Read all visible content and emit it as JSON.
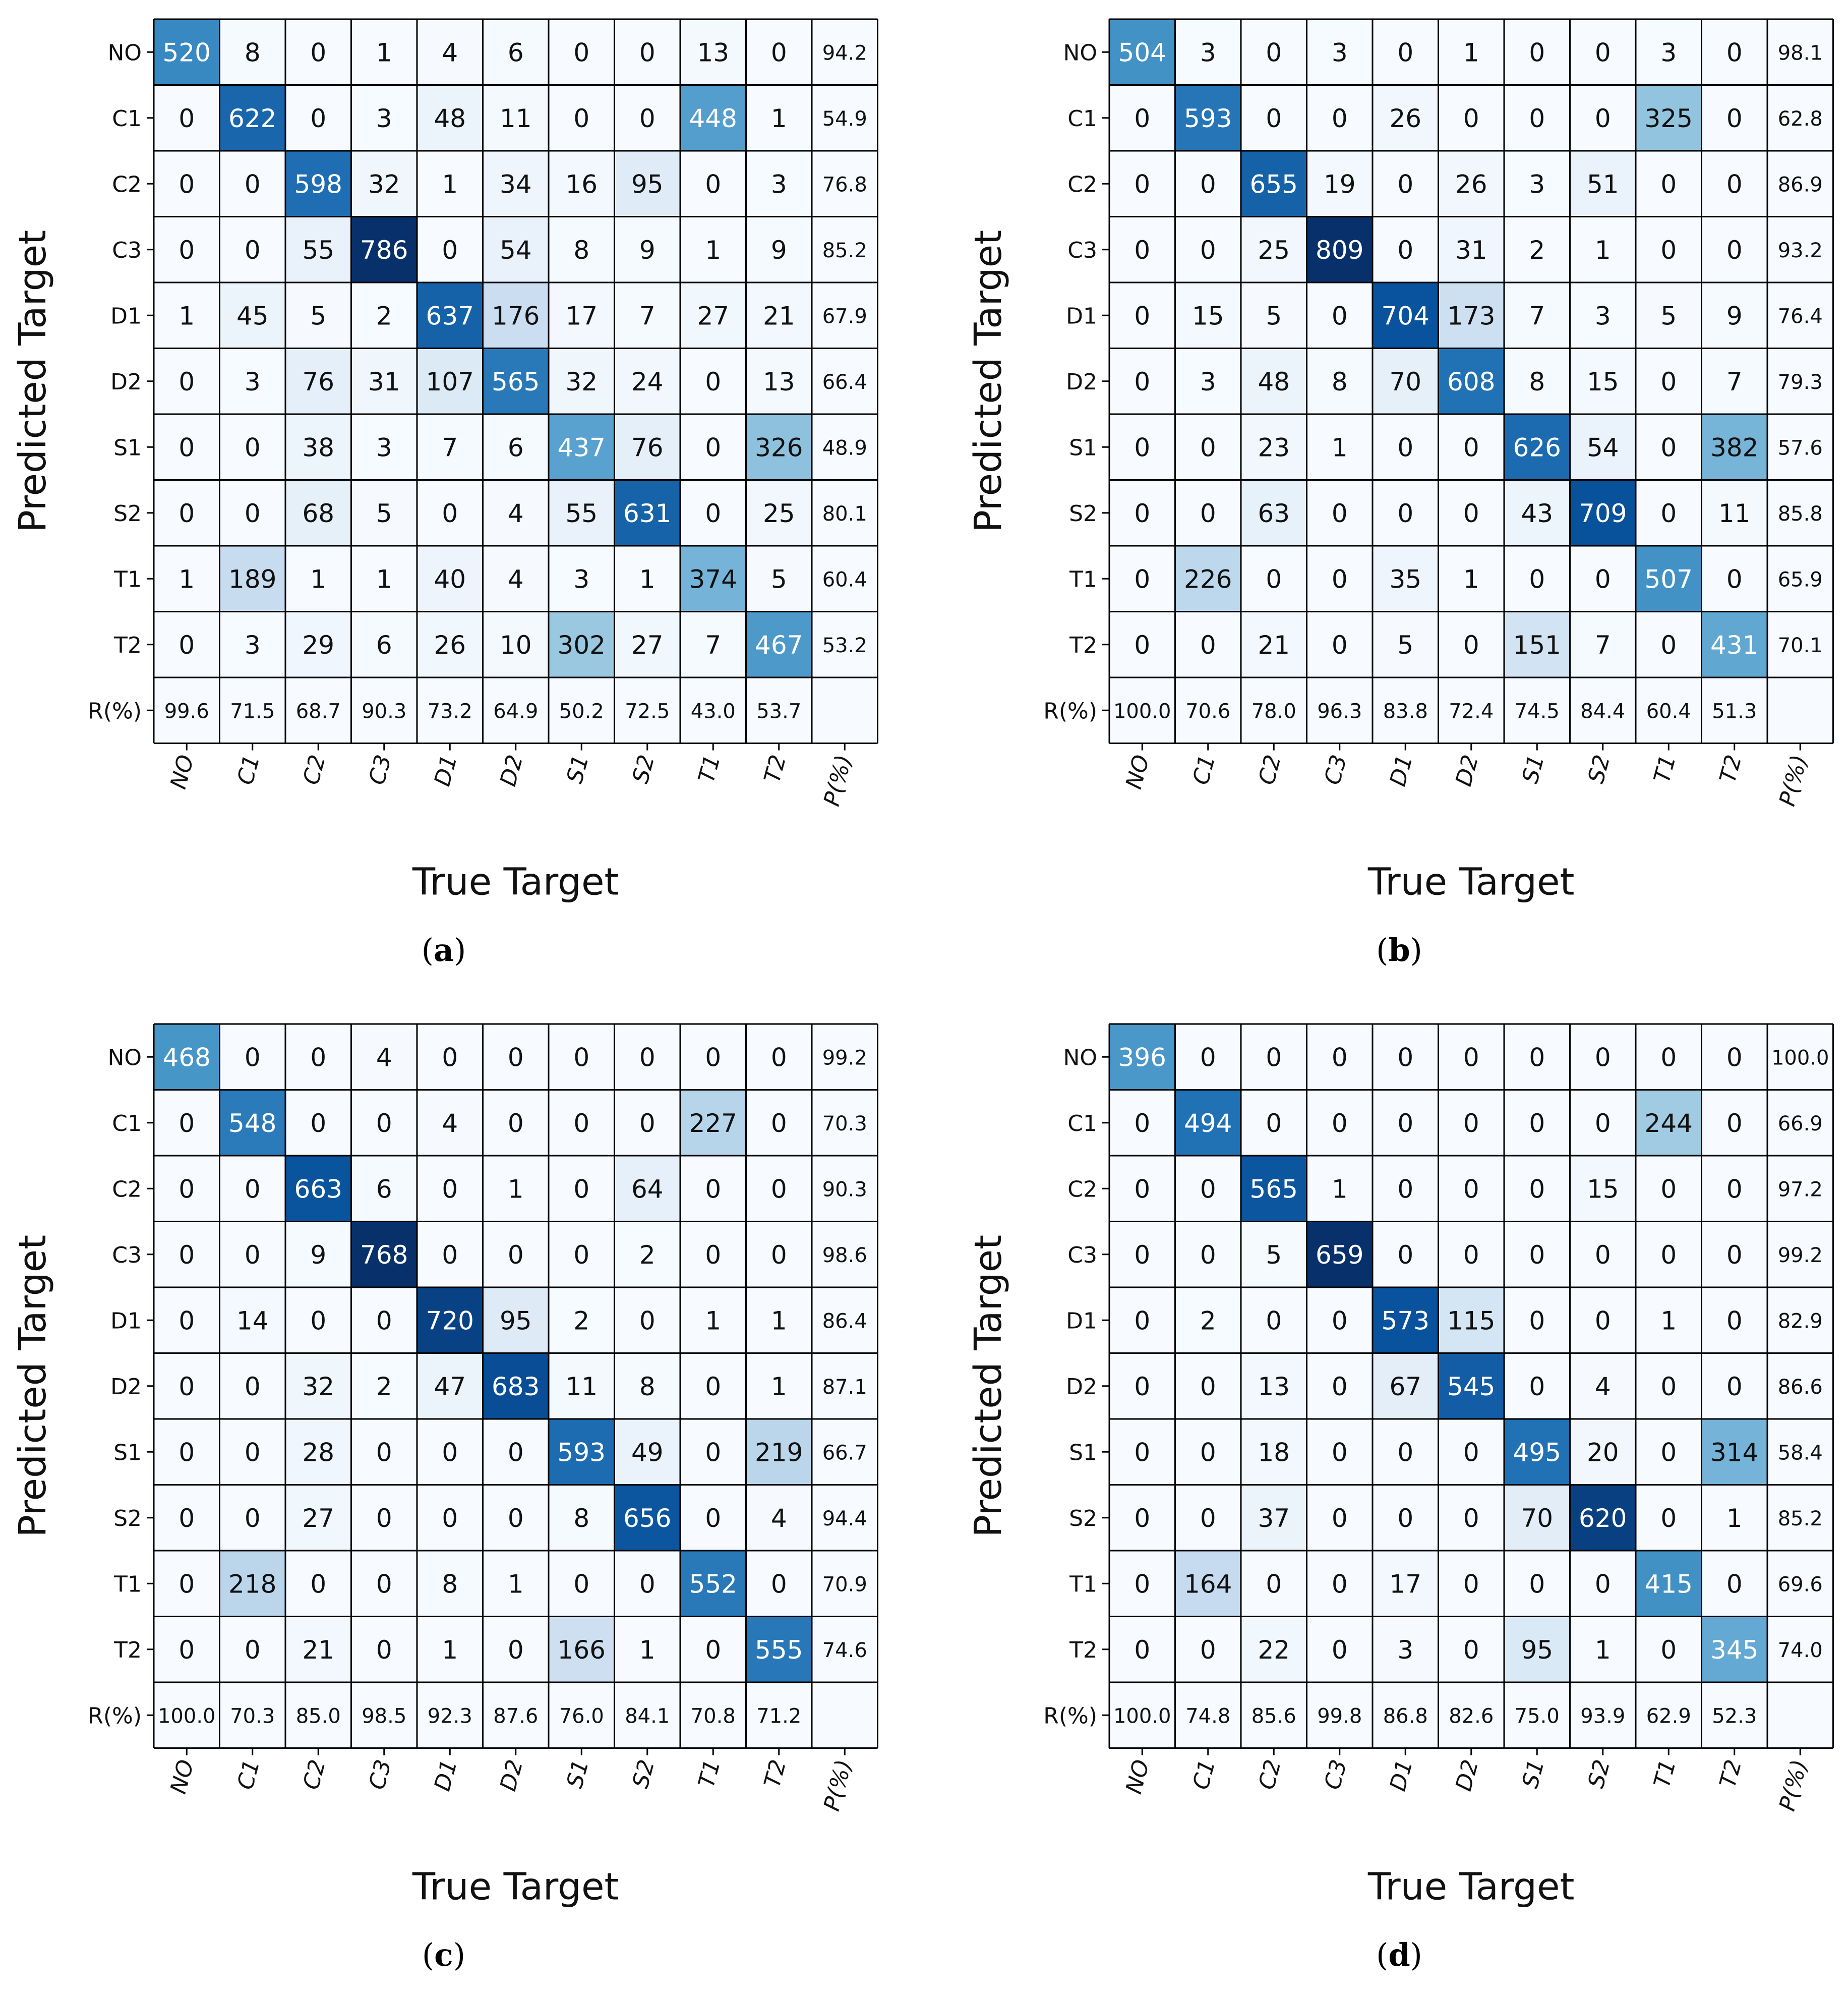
{
  "chart_data": [
    {
      "type": "heatmap",
      "panel": "a",
      "caption_letter": "a",
      "ylabel": "Predicted Target",
      "xlabel": "True Target",
      "row_labels": [
        "NO",
        "C1",
        "C2",
        "C3",
        "D1",
        "D2",
        "S1",
        "S2",
        "T1",
        "T2",
        "R(%)"
      ],
      "col_labels": [
        "NO",
        "C1",
        "C2",
        "C3",
        "D1",
        "D2",
        "S1",
        "S2",
        "T1",
        "T2",
        "P(%)"
      ],
      "matrix": [
        [
          520,
          8,
          0,
          1,
          4,
          6,
          0,
          0,
          13,
          0
        ],
        [
          0,
          622,
          0,
          3,
          48,
          11,
          0,
          0,
          448,
          1
        ],
        [
          0,
          0,
          598,
          32,
          1,
          34,
          16,
          95,
          0,
          3
        ],
        [
          0,
          0,
          55,
          786,
          0,
          54,
          8,
          9,
          1,
          9
        ],
        [
          1,
          45,
          5,
          2,
          637,
          176,
          17,
          7,
          27,
          21
        ],
        [
          0,
          3,
          76,
          31,
          107,
          565,
          32,
          24,
          0,
          13
        ],
        [
          0,
          0,
          38,
          3,
          7,
          6,
          437,
          76,
          0,
          326
        ],
        [
          0,
          0,
          68,
          5,
          0,
          4,
          55,
          631,
          0,
          25
        ],
        [
          1,
          189,
          1,
          1,
          40,
          4,
          3,
          1,
          374,
          5
        ],
        [
          0,
          3,
          29,
          6,
          26,
          10,
          302,
          27,
          7,
          467
        ]
      ],
      "precision": [
        "94.2",
        "54.9",
        "76.8",
        "85.2",
        "67.9",
        "66.4",
        "48.9",
        "80.1",
        "60.4",
        "53.2"
      ],
      "recall": [
        "99.6",
        "71.5",
        "68.7",
        "90.3",
        "73.2",
        "64.9",
        "50.2",
        "72.5",
        "43.0",
        "53.7"
      ]
    },
    {
      "type": "heatmap",
      "panel": "b",
      "caption_letter": "b",
      "ylabel": "Predicted Target",
      "xlabel": "True Target",
      "row_labels": [
        "NO",
        "C1",
        "C2",
        "C3",
        "D1",
        "D2",
        "S1",
        "S2",
        "T1",
        "T2",
        "R(%)"
      ],
      "col_labels": [
        "NO",
        "C1",
        "C2",
        "C3",
        "D1",
        "D2",
        "S1",
        "S2",
        "T1",
        "T2",
        "P(%)"
      ],
      "matrix": [
        [
          504,
          3,
          0,
          3,
          0,
          1,
          0,
          0,
          3,
          0
        ],
        [
          0,
          593,
          0,
          0,
          26,
          0,
          0,
          0,
          325,
          0
        ],
        [
          0,
          0,
          655,
          19,
          0,
          26,
          3,
          51,
          0,
          0
        ],
        [
          0,
          0,
          25,
          809,
          0,
          31,
          2,
          1,
          0,
          0
        ],
        [
          0,
          15,
          5,
          0,
          704,
          173,
          7,
          3,
          5,
          9
        ],
        [
          0,
          3,
          48,
          8,
          70,
          608,
          8,
          15,
          0,
          7
        ],
        [
          0,
          0,
          23,
          1,
          0,
          0,
          626,
          54,
          0,
          382
        ],
        [
          0,
          0,
          63,
          0,
          0,
          0,
          43,
          709,
          0,
          11
        ],
        [
          0,
          226,
          0,
          0,
          35,
          1,
          0,
          0,
          507,
          0
        ],
        [
          0,
          0,
          21,
          0,
          5,
          0,
          151,
          7,
          0,
          431
        ]
      ],
      "precision": [
        "98.1",
        "62.8",
        "86.9",
        "93.2",
        "76.4",
        "79.3",
        "57.6",
        "85.8",
        "65.9",
        "70.1"
      ],
      "recall": [
        "100.0",
        "70.6",
        "78.0",
        "96.3",
        "83.8",
        "72.4",
        "74.5",
        "84.4",
        "60.4",
        "51.3"
      ]
    },
    {
      "type": "heatmap",
      "panel": "c",
      "caption_letter": "c",
      "ylabel": "Predicted Target",
      "xlabel": "True Target",
      "row_labels": [
        "NO",
        "C1",
        "C2",
        "C3",
        "D1",
        "D2",
        "S1",
        "S2",
        "T1",
        "T2",
        "R(%)"
      ],
      "col_labels": [
        "NO",
        "C1",
        "C2",
        "C3",
        "D1",
        "D2",
        "S1",
        "S2",
        "T1",
        "T2",
        "P(%)"
      ],
      "matrix": [
        [
          468,
          0,
          0,
          4,
          0,
          0,
          0,
          0,
          0,
          0
        ],
        [
          0,
          548,
          0,
          0,
          4,
          0,
          0,
          0,
          227,
          0
        ],
        [
          0,
          0,
          663,
          6,
          0,
          1,
          0,
          64,
          0,
          0
        ],
        [
          0,
          0,
          9,
          768,
          0,
          0,
          0,
          2,
          0,
          0
        ],
        [
          0,
          14,
          0,
          0,
          720,
          95,
          2,
          0,
          1,
          1
        ],
        [
          0,
          0,
          32,
          2,
          47,
          683,
          11,
          8,
          0,
          1
        ],
        [
          0,
          0,
          28,
          0,
          0,
          0,
          593,
          49,
          0,
          219
        ],
        [
          0,
          0,
          27,
          0,
          0,
          0,
          8,
          656,
          0,
          4
        ],
        [
          0,
          218,
          0,
          0,
          8,
          1,
          0,
          0,
          552,
          0
        ],
        [
          0,
          0,
          21,
          0,
          1,
          0,
          166,
          1,
          0,
          555
        ]
      ],
      "precision": [
        "99.2",
        "70.3",
        "90.3",
        "98.6",
        "86.4",
        "87.1",
        "66.7",
        "94.4",
        "70.9",
        "74.6"
      ],
      "recall": [
        "100.0",
        "70.3",
        "85.0",
        "98.5",
        "92.3",
        "87.6",
        "76.0",
        "84.1",
        "70.8",
        "71.2"
      ]
    },
    {
      "type": "heatmap",
      "panel": "d",
      "caption_letter": "d",
      "ylabel": "Predicted Target",
      "xlabel": "True Target",
      "row_labels": [
        "NO",
        "C1",
        "C2",
        "C3",
        "D1",
        "D2",
        "S1",
        "S2",
        "T1",
        "T2",
        "R(%)"
      ],
      "col_labels": [
        "NO",
        "C1",
        "C2",
        "C3",
        "D1",
        "D2",
        "S1",
        "S2",
        "T1",
        "T2",
        "P(%)"
      ],
      "matrix": [
        [
          396,
          0,
          0,
          0,
          0,
          0,
          0,
          0,
          0,
          0
        ],
        [
          0,
          494,
          0,
          0,
          0,
          0,
          0,
          0,
          244,
          0
        ],
        [
          0,
          0,
          565,
          1,
          0,
          0,
          0,
          15,
          0,
          0
        ],
        [
          0,
          0,
          5,
          659,
          0,
          0,
          0,
          0,
          0,
          0
        ],
        [
          0,
          2,
          0,
          0,
          573,
          115,
          0,
          0,
          1,
          0
        ],
        [
          0,
          0,
          13,
          0,
          67,
          545,
          0,
          4,
          0,
          0
        ],
        [
          0,
          0,
          18,
          0,
          0,
          0,
          495,
          20,
          0,
          314
        ],
        [
          0,
          0,
          37,
          0,
          0,
          0,
          70,
          620,
          0,
          1
        ],
        [
          0,
          164,
          0,
          0,
          17,
          0,
          0,
          0,
          415,
          0
        ],
        [
          0,
          0,
          22,
          0,
          3,
          0,
          95,
          1,
          0,
          345
        ]
      ],
      "precision": [
        "100.0",
        "66.9",
        "97.2",
        "99.2",
        "82.9",
        "86.6",
        "58.4",
        "85.2",
        "69.6",
        "74.0"
      ],
      "recall": [
        "100.0",
        "74.8",
        "85.6",
        "99.8",
        "86.8",
        "82.6",
        "75.0",
        "93.9",
        "62.9",
        "52.3"
      ]
    }
  ]
}
